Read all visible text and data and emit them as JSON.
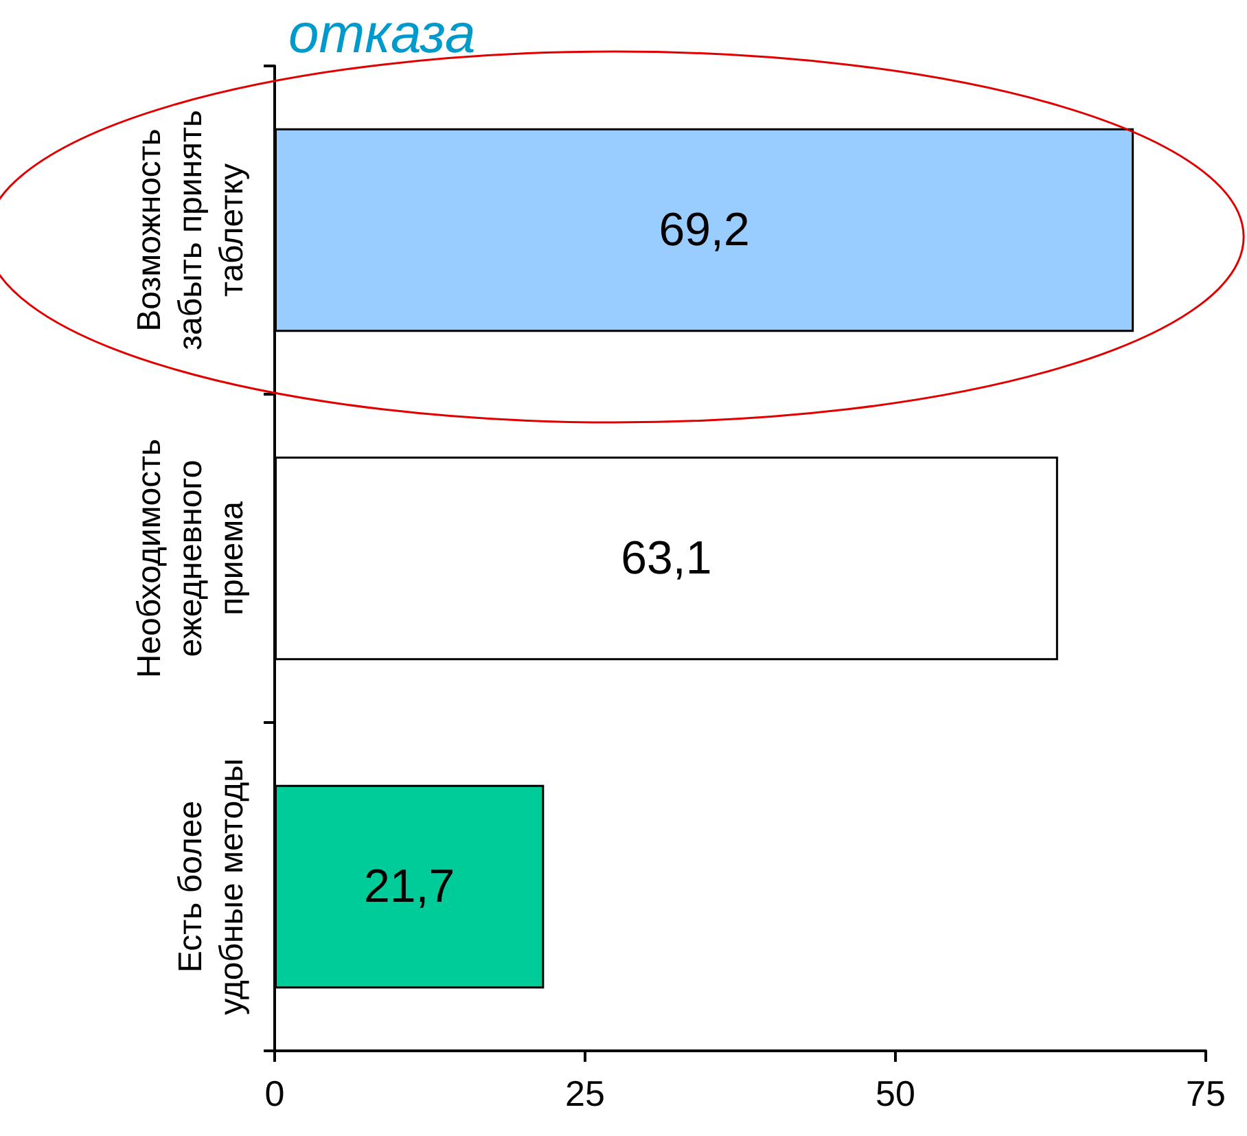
{
  "chart_data": {
    "type": "bar",
    "orientation": "horizontal",
    "title": "отказа",
    "categories": [
      "Возможность забыть принять таблетку",
      "Необходимость ежедневного приема",
      "Есть более удобные методы"
    ],
    "values": [
      69.2,
      63.1,
      21.7
    ],
    "colors": [
      "#99ccff",
      "#ffffff",
      "#00cc99"
    ],
    "value_labels": [
      "69,2",
      "63,1",
      "21,7"
    ],
    "xlim": [
      0,
      75
    ],
    "xticks": [
      0,
      25,
      50,
      75
    ]
  }
}
